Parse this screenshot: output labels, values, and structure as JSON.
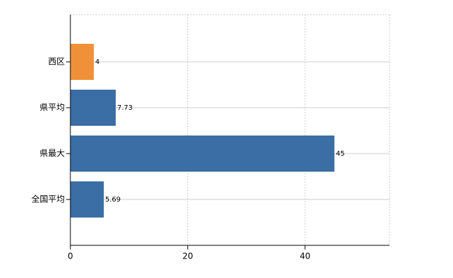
{
  "chart_data": {
    "type": "bar",
    "orientation": "horizontal",
    "categories": [
      "西区",
      "県平均",
      "県最大",
      "全国平均"
    ],
    "values": [
      4,
      7.73,
      45,
      5.69
    ],
    "colors": [
      "#f0913a",
      "#3a6ea5",
      "#3a6ea5",
      "#3a6ea5"
    ],
    "xlim": [
      0,
      54.4
    ],
    "xticks": [
      0,
      20,
      40
    ],
    "grid": true
  }
}
